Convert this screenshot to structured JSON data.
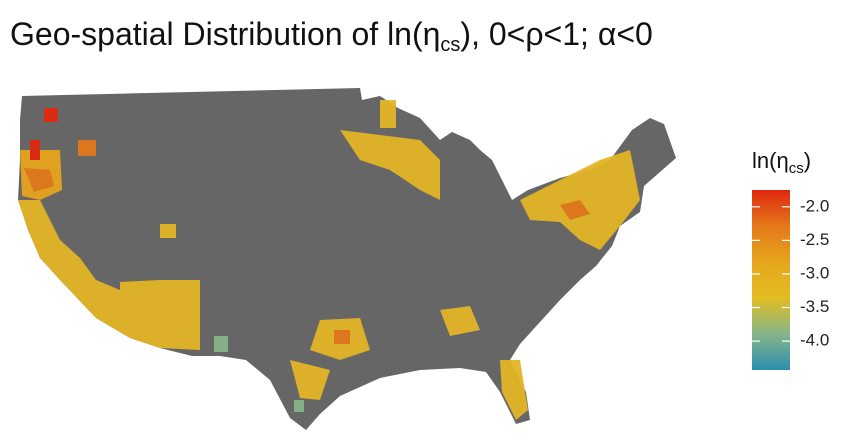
{
  "title": {
    "prefix": "Geo-spatial Distribution of ln(η",
    "subscript": "cs",
    "suffix": "), 0<ρ<1; α<0"
  },
  "legend": {
    "title": {
      "prefix": "ln(η",
      "subscript": "cs",
      "suffix": ")"
    },
    "range": [
      -4.43,
      -1.75
    ],
    "ticks": [
      {
        "value": -2,
        "label": "-2.0"
      },
      {
        "value": -2.5,
        "label": "-2.5"
      },
      {
        "value": -3,
        "label": "-3.0"
      },
      {
        "value": -3.5,
        "label": "-3.5"
      },
      {
        "value": -4,
        "label": "-4.0"
      }
    ],
    "colors": [
      "#2b8fae",
      "#86b58a",
      "#e2bd22",
      "#e6a51c",
      "#e4781a",
      "#e0280f"
    ]
  }
}
